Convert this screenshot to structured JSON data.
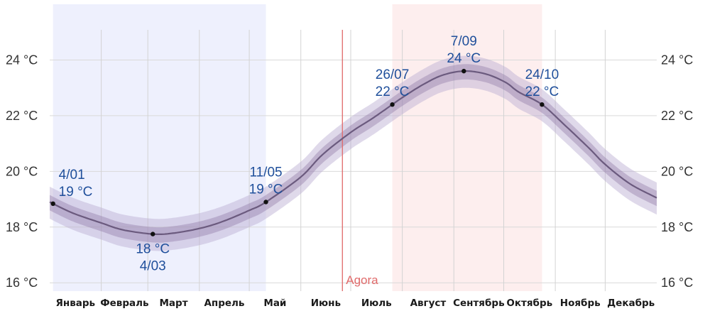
{
  "chart_data": {
    "type": "line",
    "title": "",
    "xlabel": "",
    "ylabel": "",
    "y_unit": "°C",
    "ylim": [
      15.7,
      26
    ],
    "yticks": [
      16,
      18,
      20,
      22,
      24
    ],
    "ytick_labels": [
      "16 °C",
      "18 °C",
      "20 °C",
      "22 °C",
      "24 °C"
    ],
    "xlim_day": [
      1,
      366
    ],
    "months": [
      "Январь",
      "Февраль",
      "Март",
      "Апрель",
      "Май",
      "Июнь",
      "Июль",
      "Август",
      "Сентябрь",
      "Октябрь",
      "Ноябрь",
      "Декабрь"
    ],
    "month_start_days": [
      1,
      32,
      60,
      91,
      121,
      152,
      182,
      213,
      244,
      274,
      305,
      335
    ],
    "series": [
      {
        "name": "mean",
        "color": "#6b5a7e",
        "x_day": [
          1,
          15,
          32,
          45,
          63,
          75,
          91,
          105,
          121,
          131,
          152,
          165,
          182,
          195,
          207,
          213,
          225,
          237,
          250,
          263,
          275,
          283,
          297,
          310,
          325,
          335,
          350,
          366
        ],
        "values": [
          18.9,
          18.5,
          18.15,
          17.9,
          17.75,
          17.78,
          17.95,
          18.2,
          18.6,
          18.9,
          19.8,
          20.6,
          21.4,
          21.9,
          22.4,
          22.65,
          23.1,
          23.45,
          23.6,
          23.5,
          23.2,
          22.85,
          22.4,
          21.7,
          20.85,
          20.25,
          19.55,
          19.05
        ]
      }
    ],
    "bands": {
      "inner_offsets": [
        0.25,
        0.3
      ],
      "outer_offsets": [
        0.55,
        0.6
      ],
      "inner_color": "#8e77a6",
      "outer_color": "#b7abd0"
    },
    "shaded_periods": [
      {
        "name": "cold-season",
        "start_day": 3,
        "end_day": 131,
        "color": "#eef0fd"
      },
      {
        "name": "warm-season",
        "start_day": 207,
        "end_day": 297,
        "color": "#fdeeee"
      }
    ],
    "now_marker": {
      "day": 177,
      "label": "Agora",
      "color": "#e06a6a"
    },
    "annotations": [
      {
        "day": 3,
        "value": 18.9,
        "date": "4/01",
        "temp": "19 °C",
        "position": "above-right"
      },
      {
        "day": 63,
        "value": 17.75,
        "date": "4/03",
        "temp": "18 °C",
        "position": "below"
      },
      {
        "day": 131,
        "value": 18.9,
        "date": "11/05",
        "temp": "19 °C",
        "position": "above"
      },
      {
        "day": 207,
        "value": 22.4,
        "date": "26/07",
        "temp": "22 °C",
        "position": "above"
      },
      {
        "day": 250,
        "value": 23.6,
        "date": "7/09",
        "temp": "24 °C",
        "position": "above"
      },
      {
        "day": 297,
        "value": 22.4,
        "date": "24/10",
        "temp": "22 °C",
        "position": "above"
      }
    ]
  }
}
